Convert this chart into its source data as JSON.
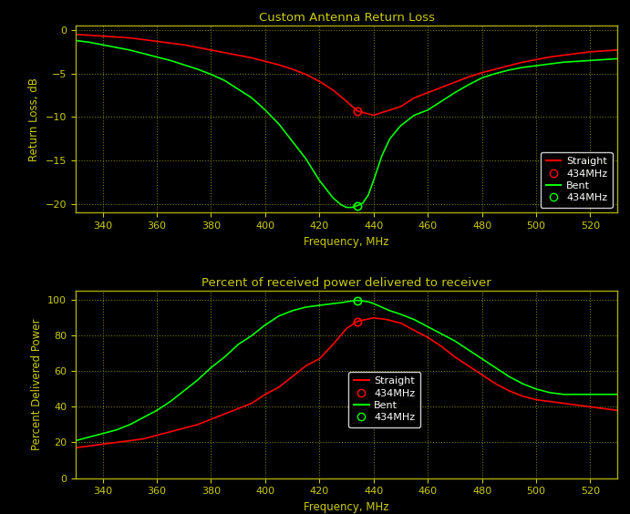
{
  "bg_color": "#000000",
  "axes_bg_color": "#000000",
  "grid_color": "#7B7B00",
  "text_color": "#CCCC00",
  "title_color": "#CCCC00",
  "axes_edge_color": "#AAAA00",
  "tick_color": "#CCCC00",
  "freq_min": 330,
  "freq_max": 530,
  "title1": "Custom Antenna Return Loss",
  "ylabel1": "Return Loss, dB",
  "xlabel1": "Frequency, MHz",
  "ylim1": [
    -21,
    0.5
  ],
  "yticks1": [
    0,
    -5,
    -10,
    -15,
    -20
  ],
  "title2": "Percent of received power delivered to receiver",
  "ylabel2": "Percent Delivered Power",
  "xlabel2": "Frequency, MHz",
  "ylim2": [
    0,
    105
  ],
  "yticks2": [
    0,
    20,
    40,
    60,
    80,
    100
  ],
  "marker_freq": 434,
  "straight_rl_freq": [
    330,
    335,
    340,
    345,
    350,
    355,
    360,
    365,
    370,
    375,
    380,
    385,
    390,
    395,
    400,
    405,
    410,
    415,
    420,
    425,
    430,
    434,
    435,
    440,
    445,
    450,
    455,
    460,
    465,
    470,
    475,
    480,
    485,
    490,
    495,
    500,
    505,
    510,
    515,
    520,
    525,
    530
  ],
  "straight_rl_val": [
    -0.5,
    -0.6,
    -0.7,
    -0.8,
    -0.9,
    -1.1,
    -1.3,
    -1.5,
    -1.7,
    -2.0,
    -2.3,
    -2.6,
    -2.9,
    -3.2,
    -3.6,
    -4.0,
    -4.5,
    -5.1,
    -5.9,
    -6.9,
    -8.2,
    -9.3,
    -9.4,
    -9.8,
    -9.3,
    -8.8,
    -7.8,
    -7.2,
    -6.6,
    -6.0,
    -5.4,
    -4.9,
    -4.5,
    -4.1,
    -3.7,
    -3.4,
    -3.1,
    -2.9,
    -2.7,
    -2.5,
    -2.4,
    -2.3
  ],
  "bent_rl_freq": [
    330,
    335,
    340,
    345,
    350,
    355,
    360,
    365,
    370,
    375,
    380,
    385,
    390,
    395,
    400,
    405,
    410,
    415,
    420,
    425,
    428,
    430,
    432,
    434,
    436,
    438,
    440,
    443,
    446,
    450,
    455,
    460,
    465,
    470,
    475,
    480,
    485,
    490,
    495,
    500,
    505,
    510,
    515,
    520,
    525,
    530
  ],
  "bent_rl_val": [
    -1.2,
    -1.4,
    -1.7,
    -2.0,
    -2.3,
    -2.7,
    -3.1,
    -3.5,
    -4.0,
    -4.5,
    -5.1,
    -5.8,
    -6.8,
    -7.8,
    -9.2,
    -10.8,
    -12.8,
    -14.8,
    -17.3,
    -19.3,
    -20.1,
    -20.4,
    -20.4,
    -20.2,
    -19.9,
    -19.0,
    -17.3,
    -14.5,
    -12.5,
    -11.0,
    -9.8,
    -9.2,
    -8.2,
    -7.2,
    -6.3,
    -5.5,
    -5.0,
    -4.6,
    -4.3,
    -4.1,
    -3.9,
    -3.7,
    -3.6,
    -3.5,
    -3.4,
    -3.3
  ],
  "straight_pow_freq": [
    330,
    335,
    340,
    345,
    350,
    355,
    360,
    365,
    370,
    375,
    380,
    385,
    390,
    395,
    400,
    405,
    410,
    415,
    420,
    425,
    430,
    434,
    440,
    445,
    450,
    455,
    460,
    465,
    470,
    475,
    480,
    485,
    490,
    495,
    500,
    505,
    510,
    515,
    520,
    525,
    530
  ],
  "straight_pow_val": [
    17,
    18,
    19,
    20,
    21,
    22,
    24,
    26,
    28,
    30,
    33,
    36,
    39,
    42,
    47,
    51,
    57,
    63,
    67,
    75,
    84,
    88,
    90,
    89,
    87,
    83,
    79,
    74,
    68,
    63,
    58,
    53,
    49,
    46,
    44,
    43,
    42,
    41,
    40,
    39,
    38
  ],
  "bent_pow_freq": [
    330,
    335,
    340,
    345,
    350,
    355,
    360,
    365,
    370,
    375,
    380,
    385,
    390,
    395,
    400,
    405,
    410,
    415,
    420,
    425,
    428,
    430,
    432,
    434,
    436,
    438,
    440,
    443,
    446,
    450,
    455,
    460,
    465,
    470,
    475,
    480,
    485,
    490,
    495,
    500,
    505,
    510,
    515,
    520,
    525,
    530
  ],
  "bent_pow_val": [
    21,
    23,
    25,
    27,
    30,
    34,
    38,
    43,
    49,
    55,
    62,
    68,
    75,
    80,
    86,
    91,
    94,
    96,
    97,
    98,
    98.5,
    99,
    99.5,
    99.8,
    99.5,
    99,
    98,
    96,
    94,
    92,
    89,
    85,
    81,
    77,
    72,
    67,
    62,
    57,
    53,
    50,
    48,
    47,
    47,
    47,
    47,
    47
  ],
  "red_color": "#FF0000",
  "green_color": "#00FF00",
  "white_color": "#FFFFFF",
  "legend_entries1": [
    "Straight",
    "434MHz",
    "Bent",
    "434MHz"
  ],
  "legend_entries2": [
    "Straight",
    "434MHz",
    "Bent",
    "434MHz"
  ],
  "xticks": [
    340,
    360,
    380,
    400,
    420,
    440,
    460,
    480,
    500,
    520
  ]
}
